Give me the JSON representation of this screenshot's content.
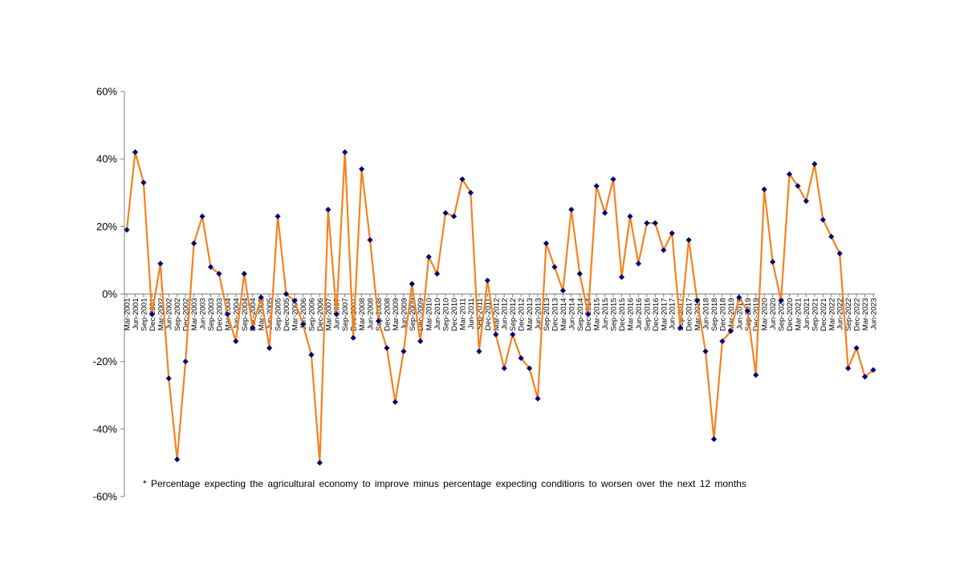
{
  "chart_data": {
    "type": "line",
    "title": "",
    "xlabel": "",
    "ylabel": "",
    "ylim": [
      -60,
      60
    ],
    "y_ticks": [
      60,
      40,
      20,
      0,
      -20,
      -40,
      -60
    ],
    "y_tick_format": "%",
    "grid": false,
    "legend": "none",
    "line_color": "#F7811F",
    "marker_color": "#00006E",
    "marker": "diamond",
    "categories": [
      "Mar-2001",
      "Jun-2001",
      "Sep-2001",
      "Dec-2001",
      "Mar-2002",
      "Jun-2002",
      "Sep-2002",
      "Dec-2002",
      "Mar-2003",
      "Jun-2003",
      "Sep-2003",
      "Dec-2003",
      "Mar-2004",
      "Jun-2004",
      "Sep-2004",
      "Dec-2004",
      "Mar-2005",
      "Jun-2005",
      "Sep-2005",
      "Dec-2005",
      "Mar-2006",
      "Jun-2006",
      "Sep-2006",
      "Dec-2006",
      "Mar-2007",
      "Jun-2007",
      "Sep-2007",
      "Dec-2007",
      "Mar-2008",
      "Jun-2008",
      "Sep-2008",
      "Dec-2008",
      "Mar-2009",
      "Jun-2009",
      "Sep-2009",
      "Dec-2009",
      "Mar-2010",
      "Jun-2010",
      "Sep-2010",
      "Dec-2010",
      "Mar-2011",
      "Jun-2011",
      "Sep-2011",
      "Dec-2011",
      "Mar-2012",
      "Jun-2012",
      "Sep-2012",
      "Dec-2012",
      "Mar-2013",
      "Jun-2013",
      "Sep-2013",
      "Dec-2013",
      "Mar-2014",
      "Jun-2014",
      "Sep-2014",
      "Dec-2014",
      "Mar-2015",
      "Jun-2015",
      "Sep-2015",
      "Dec-2015",
      "Mar-2016",
      "Jun-2016",
      "Sep-2016",
      "Dec-2016",
      "Mar-2017",
      "Jun-2017",
      "Sep-2017",
      "Dec-2017",
      "Mar-2018",
      "Jun-2018",
      "Sep-2018",
      "Dec-2018",
      "Mar-2019",
      "Jun-2019",
      "Sep-2019",
      "Dec-2019",
      "Mar-2020",
      "Jun-2020",
      "Sep-2020",
      "Dec-2020",
      "Mar-2021",
      "Jun-2021",
      "Sep-2021",
      "Dec-2021",
      "Mar-2022",
      "Jun-2022",
      "Sep-2022",
      "Dec-2022",
      "Mar-2023",
      "Jun-2023"
    ],
    "values": [
      19,
      42,
      33,
      -6,
      9,
      -25,
      -49,
      -20,
      15,
      23,
      8,
      6,
      -6,
      -14,
      6,
      -10,
      -1,
      -16,
      23,
      0,
      -2,
      -9,
      -18,
      -50,
      25,
      -6,
      42,
      -13,
      37,
      16,
      -8,
      -16,
      -32,
      -17,
      3,
      -14,
      11,
      6,
      24,
      23,
      34,
      30,
      -17,
      4,
      -12,
      -22,
      -12,
      -19,
      -22,
      -31,
      15,
      8,
      1,
      25,
      6,
      -6,
      32,
      24,
      34,
      5,
      23,
      9,
      21,
      21,
      13,
      18,
      -10,
      16,
      -2,
      -17,
      -43,
      -14,
      -11,
      -1,
      -5,
      -24,
      31,
      9.5,
      -2,
      35.5,
      32,
      27.5,
      38.5,
      22,
      17,
      12,
      -22,
      -16,
      -24.5,
      -22.5
    ]
  },
  "footnote": "* Percentage  expecting  the  agricultural  economy  to improve  minus  percentage  expecting  conditions  to worsen  over  the  next  12  months"
}
